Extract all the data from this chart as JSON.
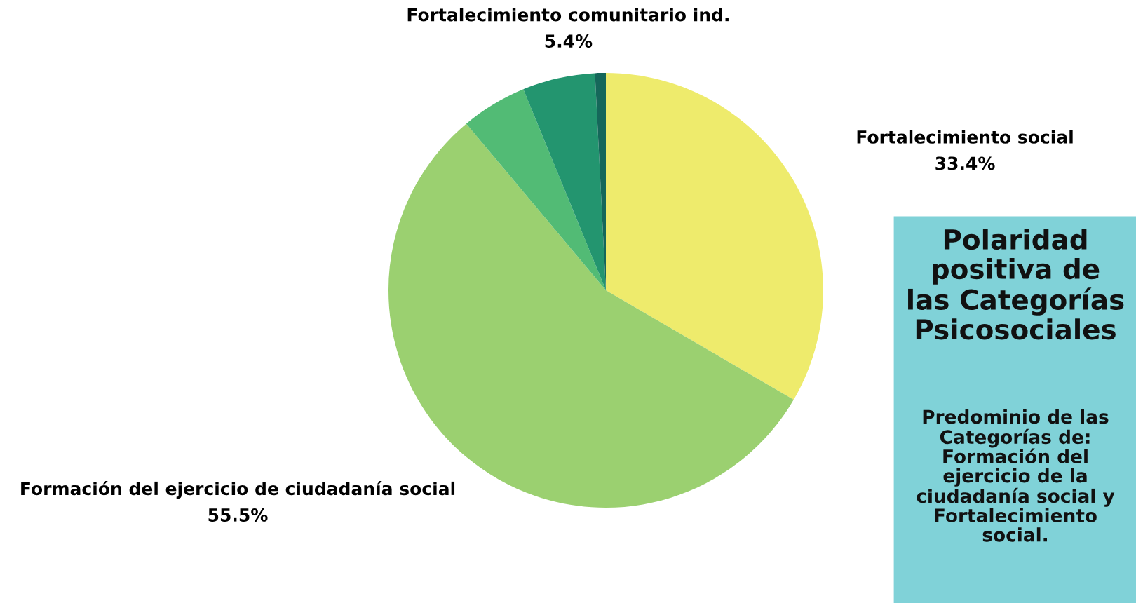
{
  "chart_data": {
    "type": "pie",
    "title": "Polaridad positiva de las Categorías Psicosociales",
    "subtitle": "Predominio de las Categorías de: Formación del ejercicio de la ciudadanía social y Fortalecimiento social.",
    "categories": [
      "Fortalecimiento social",
      "Formación del ejercicio de ciudadanía social",
      null,
      "Fortalecimiento comunitario ind.",
      null
    ],
    "values": [
      33.4,
      55.5,
      4.9,
      5.4,
      0.8
    ],
    "value_labels": [
      "33.4%",
      "55.5%",
      null,
      "5.4%",
      null
    ],
    "colors": [
      "#eeeb6c",
      "#9bd070",
      "#52bb75",
      "#23956f",
      "#15675a"
    ]
  }
}
